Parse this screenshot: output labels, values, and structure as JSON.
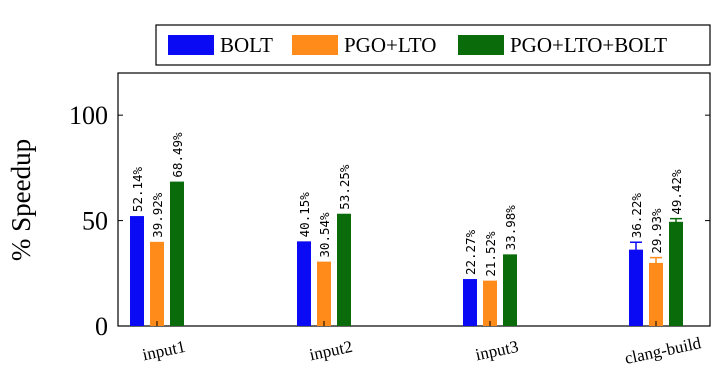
{
  "chart_data": {
    "type": "bar",
    "ylabel": "% Speedup",
    "xlabel": "",
    "ylim": [
      0,
      120
    ],
    "yticks": [
      0,
      50,
      100
    ],
    "categories": [
      "input1",
      "input2",
      "input3",
      "clang-build"
    ],
    "series": [
      {
        "name": "BOLT",
        "color": "#0a0af5",
        "values": [
          52.14,
          40.15,
          22.27,
          36.22
        ],
        "labels": [
          "52.14%",
          "40.15%",
          "22.27%",
          "36.22%"
        ]
      },
      {
        "name": "PGO+LTO",
        "color": "#ff8c1a",
        "values": [
          39.92,
          30.54,
          21.52,
          29.93
        ],
        "labels": [
          "39.92%",
          "30.54%",
          "21.52%",
          "29.93%"
        ]
      },
      {
        "name": "PGO+LTO+BOLT",
        "color": "#0a6b0a",
        "values": [
          68.49,
          53.25,
          33.98,
          49.42
        ],
        "labels": [
          "68.49%",
          "53.25%",
          "33.98%",
          "49.42%"
        ]
      }
    ],
    "error_bars": {
      "clang-build": [
        3.5,
        2.5,
        1.5
      ]
    },
    "legend_position": "top",
    "grid": false
  }
}
